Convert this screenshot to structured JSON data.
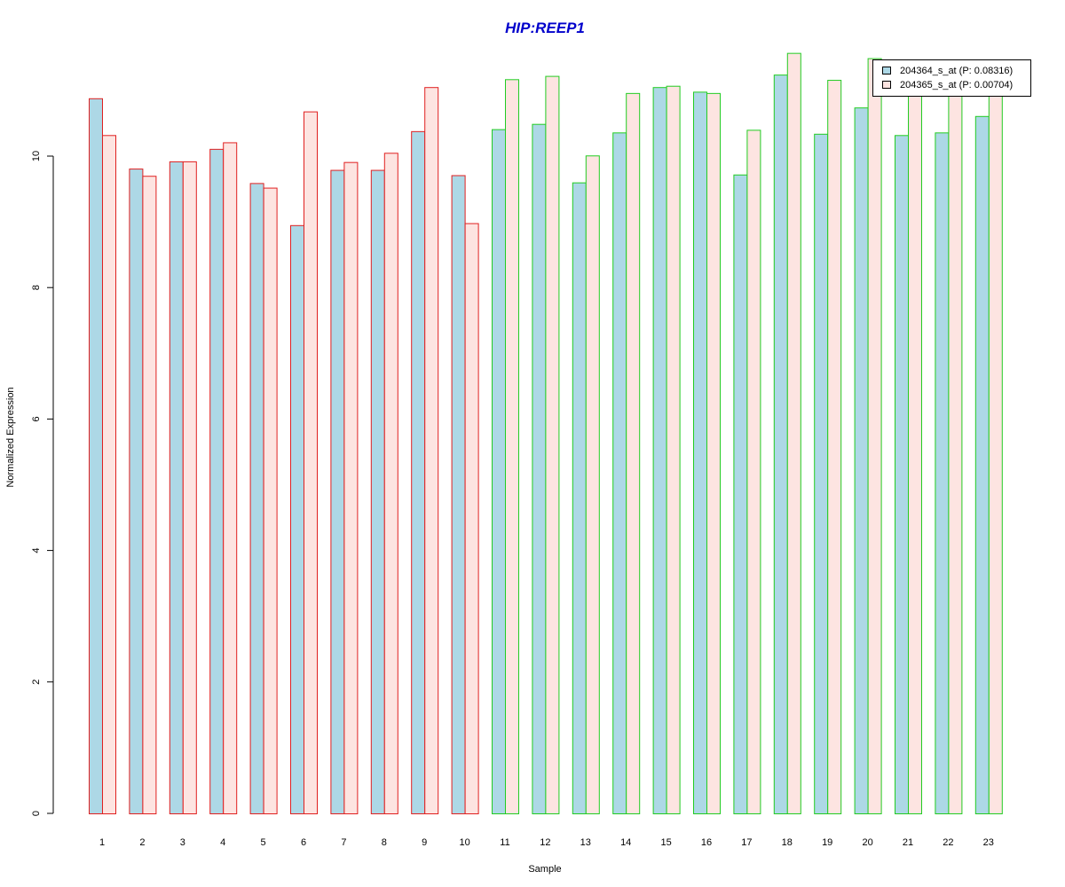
{
  "chart_data": {
    "type": "bar",
    "title": "HIP:REEP1",
    "xlabel": "Sample",
    "ylabel": "Normalized Expression",
    "ylim": [
      0,
      11.7
    ],
    "y_ticks": [
      0,
      2,
      4,
      6,
      8,
      10
    ],
    "categories": [
      "1",
      "2",
      "3",
      "4",
      "5",
      "6",
      "7",
      "8",
      "9",
      "10",
      "11",
      "12",
      "13",
      "14",
      "15",
      "16",
      "17",
      "18",
      "19",
      "20",
      "21",
      "22",
      "23"
    ],
    "group_border_colors": [
      "#e02020",
      "#e02020",
      "#e02020",
      "#e02020",
      "#e02020",
      "#e02020",
      "#e02020",
      "#e02020",
      "#e02020",
      "#e02020",
      "#22cc22",
      "#22cc22",
      "#22cc22",
      "#22cc22",
      "#22cc22",
      "#22cc22",
      "#22cc22",
      "#22cc22",
      "#22cc22",
      "#22cc22",
      "#22cc22",
      "#22cc22",
      "#22cc22"
    ],
    "series": [
      {
        "name": "204364_s_at (P: 0.08316)",
        "fill": "#add8e6",
        "values": [
          10.88,
          9.81,
          9.92,
          10.11,
          9.59,
          8.95,
          9.79,
          9.79,
          10.38,
          9.71,
          10.41,
          10.49,
          9.6,
          10.36,
          11.05,
          10.98,
          9.72,
          11.24,
          10.34,
          10.74,
          10.32,
          10.36,
          10.61
        ]
      },
      {
        "name": "204365_s_at (P: 0.00704)",
        "fill": "#fde4e1",
        "values": [
          10.32,
          9.7,
          9.92,
          10.21,
          9.52,
          10.68,
          9.91,
          10.05,
          11.05,
          8.98,
          11.17,
          11.22,
          10.01,
          10.96,
          11.07,
          10.96,
          10.4,
          11.57,
          11.16,
          11.49,
          10.96,
          10.96,
          10.93
        ]
      }
    ],
    "legend_position": "top-right",
    "grid": false
  }
}
